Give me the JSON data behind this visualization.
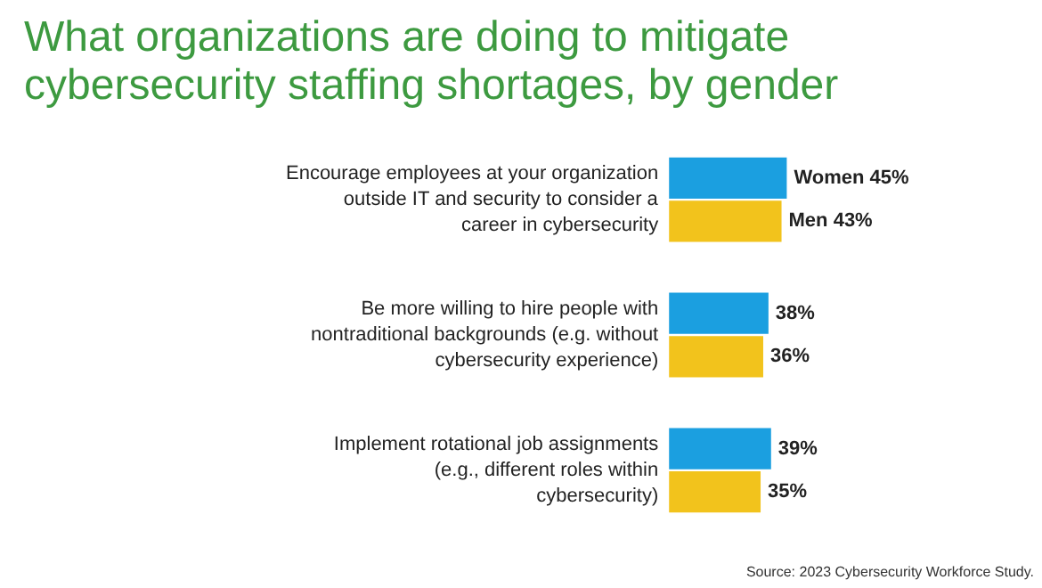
{
  "chart_data": {
    "type": "bar",
    "orientation": "horizontal",
    "title": "What organizations are doing to mitigate cybersecurity staffing shortages, by gender",
    "categories": [
      "Encourage employees at your organization outside IT and security to consider a career in cybersecurity",
      "Be more willing to hire people with nontraditional backgrounds (e.g. without cybersecurity experience)",
      "Implement rotational job assignments (e.g., different roles within cybersecurity)"
    ],
    "series": [
      {
        "name": "Women",
        "color": "#1b9fe0",
        "values": [
          45,
          38,
          39
        ],
        "value_labels": [
          "45%",
          "38%",
          "39%"
        ]
      },
      {
        "name": "Men",
        "color": "#f2c31c",
        "values": [
          43,
          36,
          35
        ],
        "value_labels": [
          "43%",
          "36%",
          "35%"
        ]
      }
    ],
    "grid": false,
    "annotations": [
      "Source: 2023 Cybersecurity Workforce Study."
    ]
  }
}
